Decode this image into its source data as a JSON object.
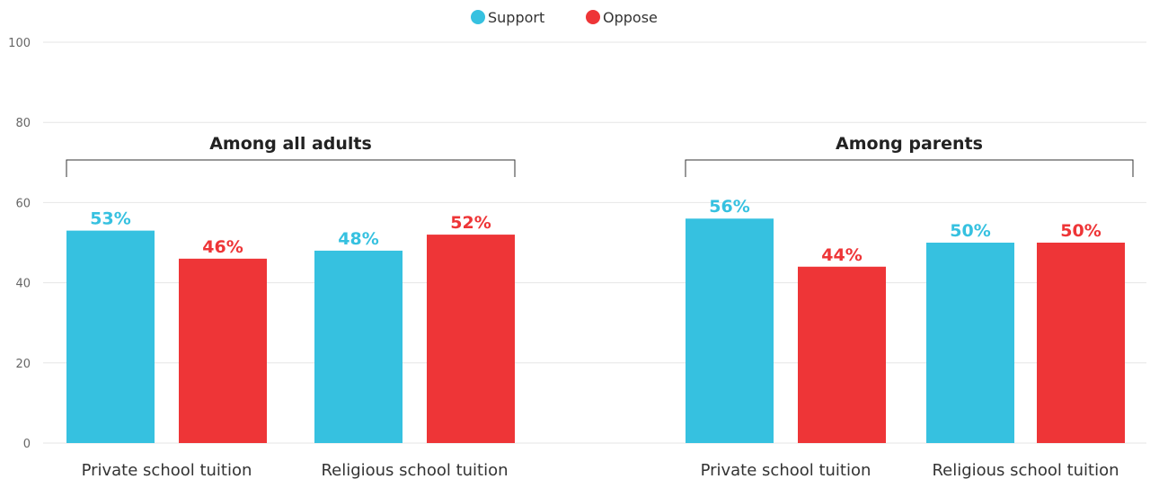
{
  "chart_data": {
    "type": "bar",
    "ylim": [
      0,
      100
    ],
    "yticks": [
      0,
      20,
      40,
      60,
      80,
      100
    ],
    "grid": true,
    "legend_position": "top-center",
    "series_meta": [
      {
        "name": "Support",
        "color": "#36c1e0"
      },
      {
        "name": "Oppose",
        "color": "#ee3537"
      }
    ],
    "groups": [
      {
        "title": "Among all adults",
        "categories": [
          "Private school tuition",
          "Religious school tuition"
        ],
        "series": [
          {
            "name": "Support",
            "values": [
              53,
              48
            ],
            "labels": [
              "53%",
              "48%"
            ]
          },
          {
            "name": "Oppose",
            "values": [
              46,
              52
            ],
            "labels": [
              "46%",
              "52%"
            ]
          }
        ]
      },
      {
        "title": "Among parents",
        "categories": [
          "Private school tuition",
          "Religious school tuition"
        ],
        "series": [
          {
            "name": "Support",
            "values": [
              56,
              50
            ],
            "labels": [
              "56%",
              "50%"
            ]
          },
          {
            "name": "Oppose",
            "values": [
              44,
              50
            ],
            "labels": [
              "44%",
              "50%"
            ]
          }
        ]
      }
    ]
  }
}
